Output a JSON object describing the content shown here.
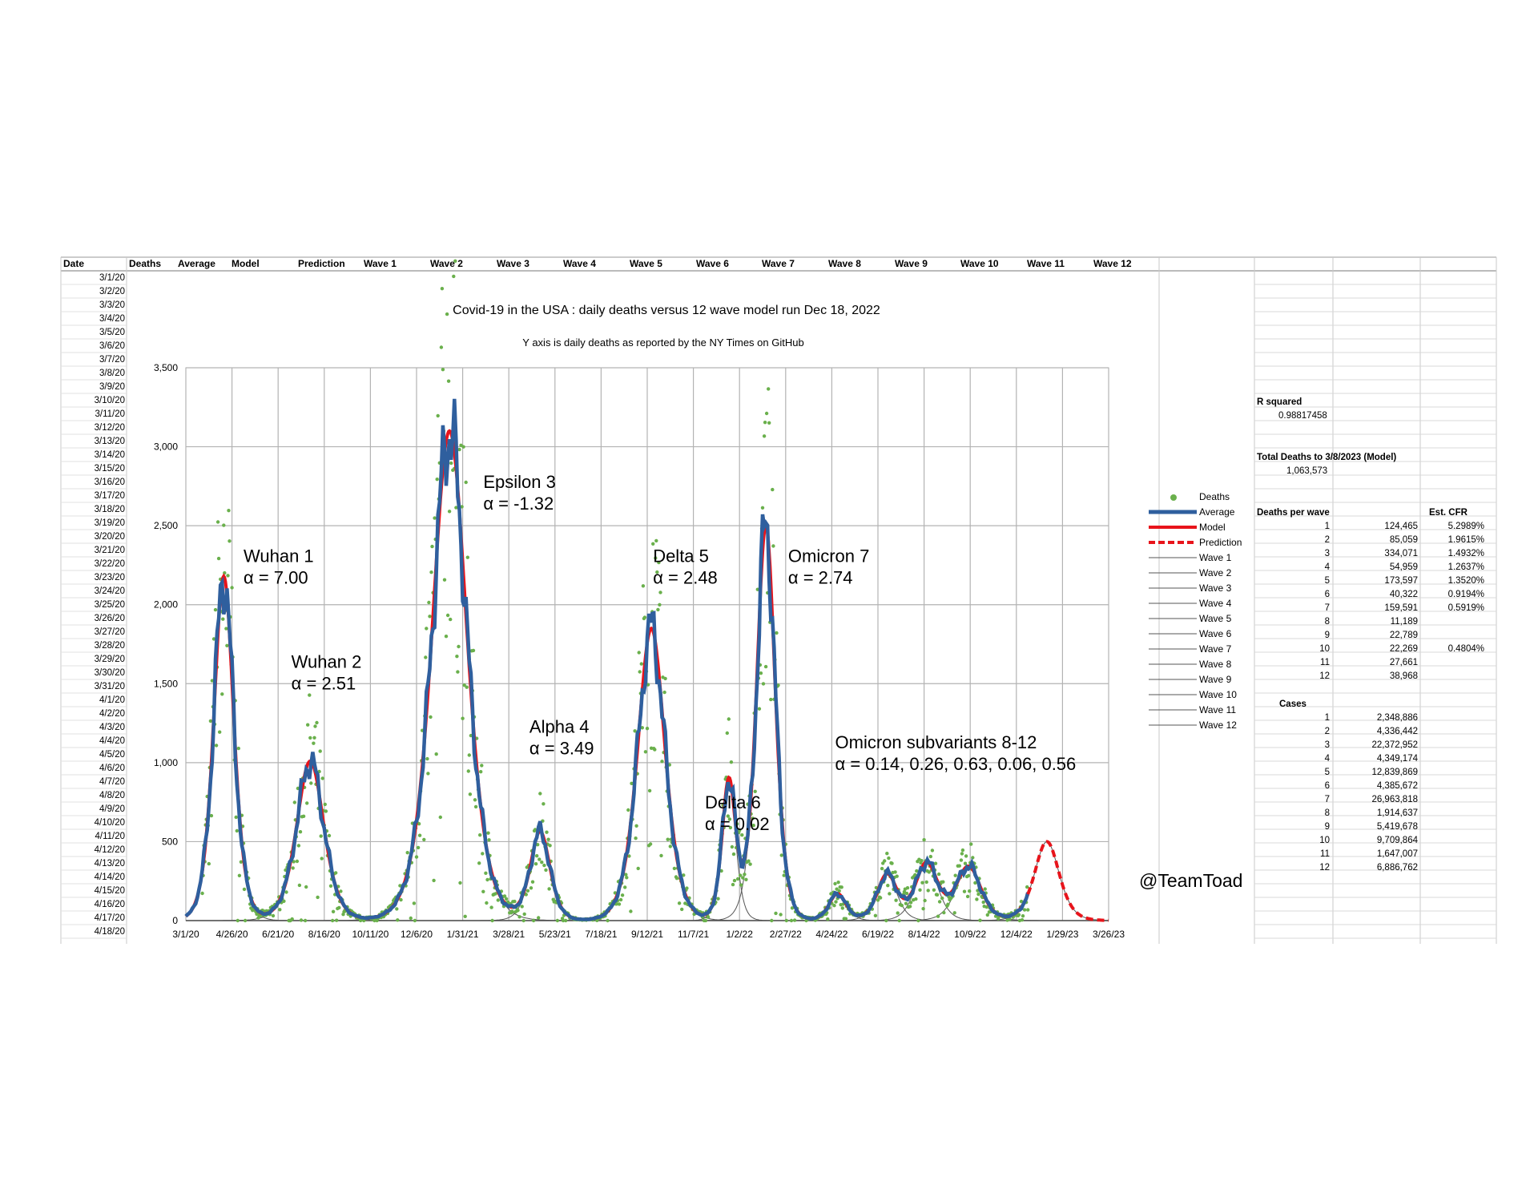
{
  "spreadsheet": {
    "headers": [
      "Date",
      "Deaths",
      "Average",
      "Model",
      "Prediction",
      "Wave 1",
      "Wave 2",
      "Wave 3",
      "Wave 4",
      "Wave 5",
      "Wave 6",
      "Wave 7",
      "Wave 8",
      "Wave 9",
      "Wave 10",
      "Wave 11",
      "Wave 12"
    ],
    "dates": [
      "3/1/20",
      "3/2/20",
      "3/3/20",
      "3/4/20",
      "3/5/20",
      "3/6/20",
      "3/7/20",
      "3/8/20",
      "3/9/20",
      "3/10/20",
      "3/11/20",
      "3/12/20",
      "3/13/20",
      "3/14/20",
      "3/15/20",
      "3/16/20",
      "3/17/20",
      "3/18/20",
      "3/19/20",
      "3/20/20",
      "3/21/20",
      "3/22/20",
      "3/23/20",
      "3/24/20",
      "3/25/20",
      "3/26/20",
      "3/27/20",
      "3/28/20",
      "3/29/20",
      "3/30/20",
      "3/31/20",
      "4/1/20",
      "4/2/20",
      "4/3/20",
      "4/4/20",
      "4/5/20",
      "4/6/20",
      "4/7/20",
      "4/8/20",
      "4/9/20",
      "4/10/20",
      "4/11/20",
      "4/12/20",
      "4/13/20",
      "4/14/20",
      "4/15/20",
      "4/16/20",
      "4/17/20",
      "4/18/20"
    ]
  },
  "stats": {
    "r_squared_label": "R squared",
    "r_squared_value": "0.98817458",
    "total_label": "Total Deaths to 3/8/2023 (Model)",
    "total_value": "1,063,573",
    "deaths_per_wave_label": "Deaths per wave",
    "cfr_label": "Est. CFR",
    "deaths_per_wave": [
      {
        "wave": "1",
        "deaths": "124,465",
        "cfr": "5.2989%"
      },
      {
        "wave": "2",
        "deaths": "85,059",
        "cfr": "1.9615%"
      },
      {
        "wave": "3",
        "deaths": "334,071",
        "cfr": "1.4932%"
      },
      {
        "wave": "4",
        "deaths": "54,959",
        "cfr": "1.2637%"
      },
      {
        "wave": "5",
        "deaths": "173,597",
        "cfr": "1.3520%"
      },
      {
        "wave": "6",
        "deaths": "40,322",
        "cfr": "0.9194%"
      },
      {
        "wave": "7",
        "deaths": "159,591",
        "cfr": "0.5919%"
      },
      {
        "wave": "8",
        "deaths": "11,189",
        "cfr": ""
      },
      {
        "wave": "9",
        "deaths": "22,789",
        "cfr": ""
      },
      {
        "wave": "10",
        "deaths": "22,269",
        "cfr": "0.4804%"
      },
      {
        "wave": "11",
        "deaths": "27,661",
        "cfr": ""
      },
      {
        "wave": "12",
        "deaths": "38,968",
        "cfr": ""
      }
    ],
    "cases_label": "Cases",
    "cases": [
      {
        "wave": "1",
        "cases": "2,348,886"
      },
      {
        "wave": "2",
        "cases": "4,336,442"
      },
      {
        "wave": "3",
        "cases": "22,372,952"
      },
      {
        "wave": "4",
        "cases": "4,349,174"
      },
      {
        "wave": "5",
        "cases": "12,839,869"
      },
      {
        "wave": "6",
        "cases": "4,385,672"
      },
      {
        "wave": "7",
        "cases": "26,963,818"
      },
      {
        "wave": "8",
        "cases": "1,914,637"
      },
      {
        "wave": "9",
        "cases": "5,419,678"
      },
      {
        "wave": "10",
        "cases": "9,709,864"
      },
      {
        "wave": "11",
        "cases": "1,647,007"
      },
      {
        "wave": "12",
        "cases": "6,886,762"
      }
    ]
  },
  "handle": "@TeamToad",
  "chart_data": {
    "type": "line",
    "title": "Covid-19 in the USA : daily deaths versus 12 wave model run Dec 18, 2022",
    "subtitle": "Y axis is daily deaths as reported by the NY Times on GitHub",
    "xlabel": "",
    "ylabel": "",
    "x_start_date": "3/1/20",
    "x_end_date": "3/26/23",
    "x_tick_labels": [
      "3/1/20",
      "4/26/20",
      "6/21/20",
      "8/16/20",
      "10/11/20",
      "12/6/20",
      "1/31/21",
      "3/28/21",
      "5/23/21",
      "7/18/21",
      "9/12/21",
      "11/7/21",
      "1/2/22",
      "2/27/22",
      "4/24/22",
      "6/19/22",
      "8/14/22",
      "10/9/22",
      "12/4/22",
      "1/29/23",
      "3/26/23"
    ],
    "y_ticks": [
      0,
      500,
      1000,
      1500,
      2000,
      2500,
      3000,
      3500
    ],
    "y_tick_labels": [
      "0",
      "500",
      "1,000",
      "1,500",
      "2,000",
      "2,500",
      "3,000",
      "3,500"
    ],
    "ylim": [
      0,
      3500
    ],
    "grid": true,
    "legend_position": "right",
    "legend": [
      "Deaths",
      "Average",
      "Model",
      "Prediction",
      "Wave 1",
      "Wave 2",
      "Wave 3",
      "Wave 4",
      "Wave 5",
      "Wave 6",
      "Wave 7",
      "Wave 8",
      "Wave 9",
      "Wave 10",
      "Wave 11",
      "Wave 12"
    ],
    "colors": {
      "deaths": "#6ab04c",
      "average": "#2f5f9e",
      "model": "#e8141b",
      "prediction": "#e8141b",
      "wave": "#555555",
      "grid": "#b3b3b3"
    },
    "waves": [
      {
        "name": "Wave 1",
        "peak_date": "4/16/20",
        "peak": 2180,
        "width_days": 16
      },
      {
        "name": "Wave 2",
        "peak_date": "7/30/20",
        "peak": 1010,
        "width_days": 22
      },
      {
        "name": "Wave 3",
        "peak_date": "1/15/21",
        "peak": 3100,
        "width_days": 28
      },
      {
        "name": "Wave 4",
        "peak_date": "5/5/21",
        "peak": 560,
        "width_days": 16
      },
      {
        "name": "Wave 5",
        "peak_date": "9/17/21",
        "peak": 1850,
        "width_days": 22
      },
      {
        "name": "Wave 6",
        "peak_date": "12/20/21",
        "peak": 880,
        "width_days": 11
      },
      {
        "name": "Wave 7",
        "peak_date": "2/3/22",
        "peak": 2500,
        "width_days": 15
      },
      {
        "name": "Wave 8",
        "peak_date": "5/1/22",
        "peak": 170,
        "width_days": 14
      },
      {
        "name": "Wave 9",
        "peak_date": "6/30/22",
        "peak": 290,
        "width_days": 16
      },
      {
        "name": "Wave 10",
        "peak_date": "8/17/22",
        "peak": 360,
        "width_days": 18
      },
      {
        "name": "Wave 11",
        "peak_date": "10/7/22",
        "peak": 340,
        "width_days": 20
      },
      {
        "name": "Wave 12",
        "peak_date": "1/10/23",
        "peak": 500,
        "width_days": 20
      }
    ],
    "annotations": [
      {
        "line1": "Wuhan 1",
        "line2": "α = 7.00",
        "date": "5/10/20",
        "y": 2270
      },
      {
        "line1": "Wuhan 2",
        "line2": "α = 2.51",
        "date": "7/7/20",
        "y": 1600
      },
      {
        "line1": "Epsilon 3",
        "line2": "α = -1.32",
        "date": "2/25/21",
        "y": 2740
      },
      {
        "line1": "Alpha 4",
        "line2": "α = 3.49",
        "date": "4/22/21",
        "y": 1190
      },
      {
        "line1": "Delta 5",
        "line2": "α = 2.48",
        "date": "9/19/21",
        "y": 2270
      },
      {
        "line1": "Delta 6",
        "line2": "α = 0.02",
        "date": "11/21/21",
        "y": 710
      },
      {
        "line1": "Omicron 7",
        "line2": "α = 2.74",
        "date": "3/2/22",
        "y": 2270
      },
      {
        "line1": "Omicron subvariants 8-12",
        "line2": "α = 0.14, 0.26, 0.63, 0.06, 0.56",
        "date": "4/28/22",
        "y": 1090
      }
    ]
  }
}
